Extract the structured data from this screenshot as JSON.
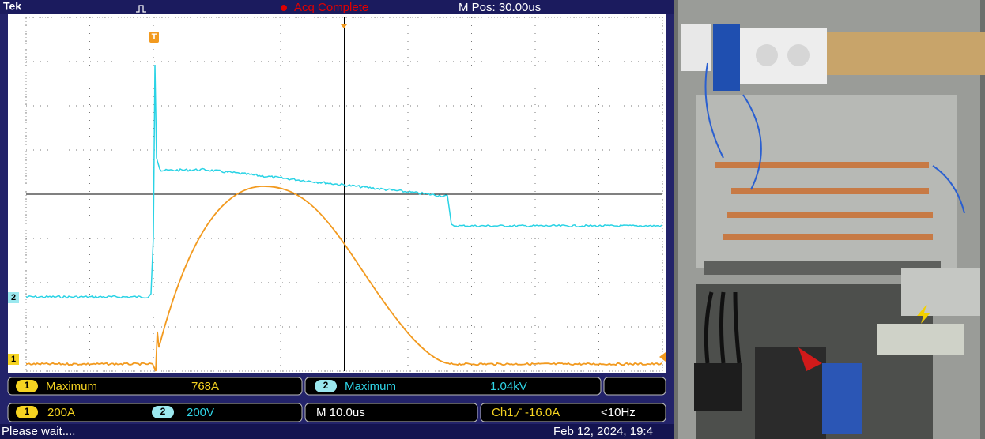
{
  "header": {
    "brand": "Tek",
    "trigger_status": "Acq Complete",
    "position": "M Pos: 30.00us"
  },
  "markers": {
    "trigger": "T",
    "ch2": "2",
    "ch1": "1"
  },
  "measurements": [
    {
      "channel": "1",
      "label": "Maximum",
      "value": "768A"
    },
    {
      "channel": "2",
      "label": "Maximum",
      "value": "1.04kV"
    }
  ],
  "settings": {
    "ch1_channel": "1",
    "ch1_scale": "200A",
    "ch2_channel": "2",
    "ch2_scale": "200V",
    "timebase": "M 10.0us",
    "trigger_source": "Ch1",
    "trigger_level": "-16.0A",
    "trigger_freq": "<10Hz"
  },
  "status": {
    "message": "Please wait....",
    "datetime": "Feb 12, 2024, 19:4"
  }
}
